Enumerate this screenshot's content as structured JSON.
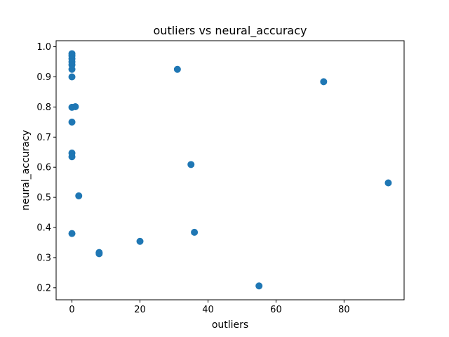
{
  "chart_data": {
    "type": "scatter",
    "title": "outliers vs neural_accuracy",
    "xlabel": "outliers",
    "ylabel": "neural_accuracy",
    "xlim": [
      -4.65,
      97.65
    ],
    "ylim": [
      0.16,
      1.02
    ],
    "xticks": [
      0,
      20,
      40,
      60,
      80
    ],
    "xtick_labels": [
      "0",
      "20",
      "40",
      "60",
      "80"
    ],
    "yticks": [
      0.2,
      0.3,
      0.4,
      0.5,
      0.6,
      0.7,
      0.8,
      0.9,
      1.0
    ],
    "ytick_labels": [
      "0.2",
      "0.3",
      "0.4",
      "0.5",
      "0.6",
      "0.7",
      "0.8",
      "0.9",
      "1.0"
    ],
    "grid": false,
    "marker_color": "#1f77b4",
    "points": [
      {
        "x": 0,
        "y": 0.977
      },
      {
        "x": 0,
        "y": 0.97
      },
      {
        "x": 0,
        "y": 0.96
      },
      {
        "x": 0,
        "y": 0.95
      },
      {
        "x": 0,
        "y": 0.94
      },
      {
        "x": 0,
        "y": 0.925
      },
      {
        "x": 0,
        "y": 0.9
      },
      {
        "x": 0,
        "y": 0.799
      },
      {
        "x": 1,
        "y": 0.801
      },
      {
        "x": 0,
        "y": 0.75
      },
      {
        "x": 0,
        "y": 0.647
      },
      {
        "x": 0,
        "y": 0.635
      },
      {
        "x": 0,
        "y": 0.38
      },
      {
        "x": 2,
        "y": 0.505
      },
      {
        "x": 8,
        "y": 0.317
      },
      {
        "x": 8,
        "y": 0.313
      },
      {
        "x": 20,
        "y": 0.354
      },
      {
        "x": 31,
        "y": 0.925
      },
      {
        "x": 35,
        "y": 0.609
      },
      {
        "x": 36,
        "y": 0.384
      },
      {
        "x": 55,
        "y": 0.206
      },
      {
        "x": 74,
        "y": 0.884
      },
      {
        "x": 93,
        "y": 0.548
      }
    ]
  }
}
